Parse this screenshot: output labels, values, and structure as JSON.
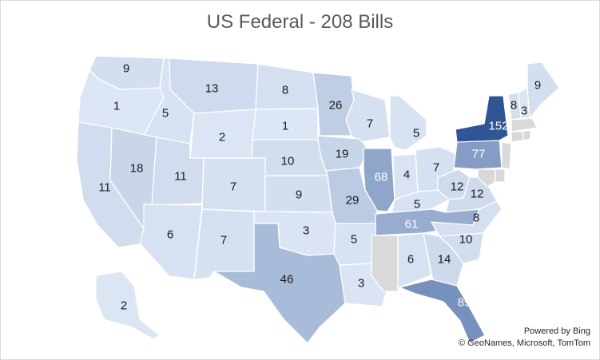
{
  "title": "US Federal - 208 Bills",
  "attribution": {
    "line1": "Powered by Bing",
    "line2": "© GeoNames, Microsoft, TomTom"
  },
  "colors": {
    "scale_min": "#dce6f4",
    "scale_max": "#2f5597",
    "no_data": "#d9d9d9",
    "label_dark": "#1a1a1a",
    "label_light": "#ffffff",
    "border": "#ffffff"
  },
  "chart_data": {
    "type": "choropleth",
    "title": "US Federal - 208 Bills",
    "regions": [
      {
        "state": "WA",
        "value": 9
      },
      {
        "state": "OR",
        "value": 1
      },
      {
        "state": "ID",
        "value": 5
      },
      {
        "state": "MT",
        "value": 13
      },
      {
        "state": "WY",
        "value": 2
      },
      {
        "state": "ND",
        "value": 8
      },
      {
        "state": "SD",
        "value": 1
      },
      {
        "state": "NE",
        "value": 10
      },
      {
        "state": "MN",
        "value": 26
      },
      {
        "state": "WI",
        "value": 7
      },
      {
        "state": "MI",
        "value": 5
      },
      {
        "state": "IA",
        "value": 19
      },
      {
        "state": "IL",
        "value": 68
      },
      {
        "state": "IN",
        "value": 4
      },
      {
        "state": "OH",
        "value": 7
      },
      {
        "state": "PA",
        "value": 77
      },
      {
        "state": "NY",
        "value": 152
      },
      {
        "state": "VT",
        "value": 8
      },
      {
        "state": "NH",
        "value": 3
      },
      {
        "state": "ME",
        "value": 9
      },
      {
        "state": "CA",
        "value": 11
      },
      {
        "state": "NV",
        "value": 18
      },
      {
        "state": "UT",
        "value": 11
      },
      {
        "state": "CO",
        "value": 7
      },
      {
        "state": "KS",
        "value": 9
      },
      {
        "state": "MO",
        "value": 29
      },
      {
        "state": "KY",
        "value": 5
      },
      {
        "state": "WV",
        "value": 12
      },
      {
        "state": "VA",
        "value": 12
      },
      {
        "state": "TN",
        "value": 61
      },
      {
        "state": "NC",
        "value": 8
      },
      {
        "state": "SC",
        "value": 10
      },
      {
        "state": "AZ",
        "value": 6
      },
      {
        "state": "NM",
        "value": 7
      },
      {
        "state": "OK",
        "value": 3
      },
      {
        "state": "AR",
        "value": 5
      },
      {
        "state": "TX",
        "value": 46
      },
      {
        "state": "LA",
        "value": 3
      },
      {
        "state": "AL",
        "value": 6
      },
      {
        "state": "GA",
        "value": 14
      },
      {
        "state": "FL",
        "value": 89
      },
      {
        "state": "AK",
        "value": 2
      },
      {
        "state": "MS",
        "value": null
      },
      {
        "state": "MA",
        "value": null
      },
      {
        "state": "CT",
        "value": null
      },
      {
        "state": "RI",
        "value": null
      },
      {
        "state": "NJ",
        "value": null
      },
      {
        "state": "DE",
        "value": null
      },
      {
        "state": "MD",
        "value": null
      }
    ]
  }
}
